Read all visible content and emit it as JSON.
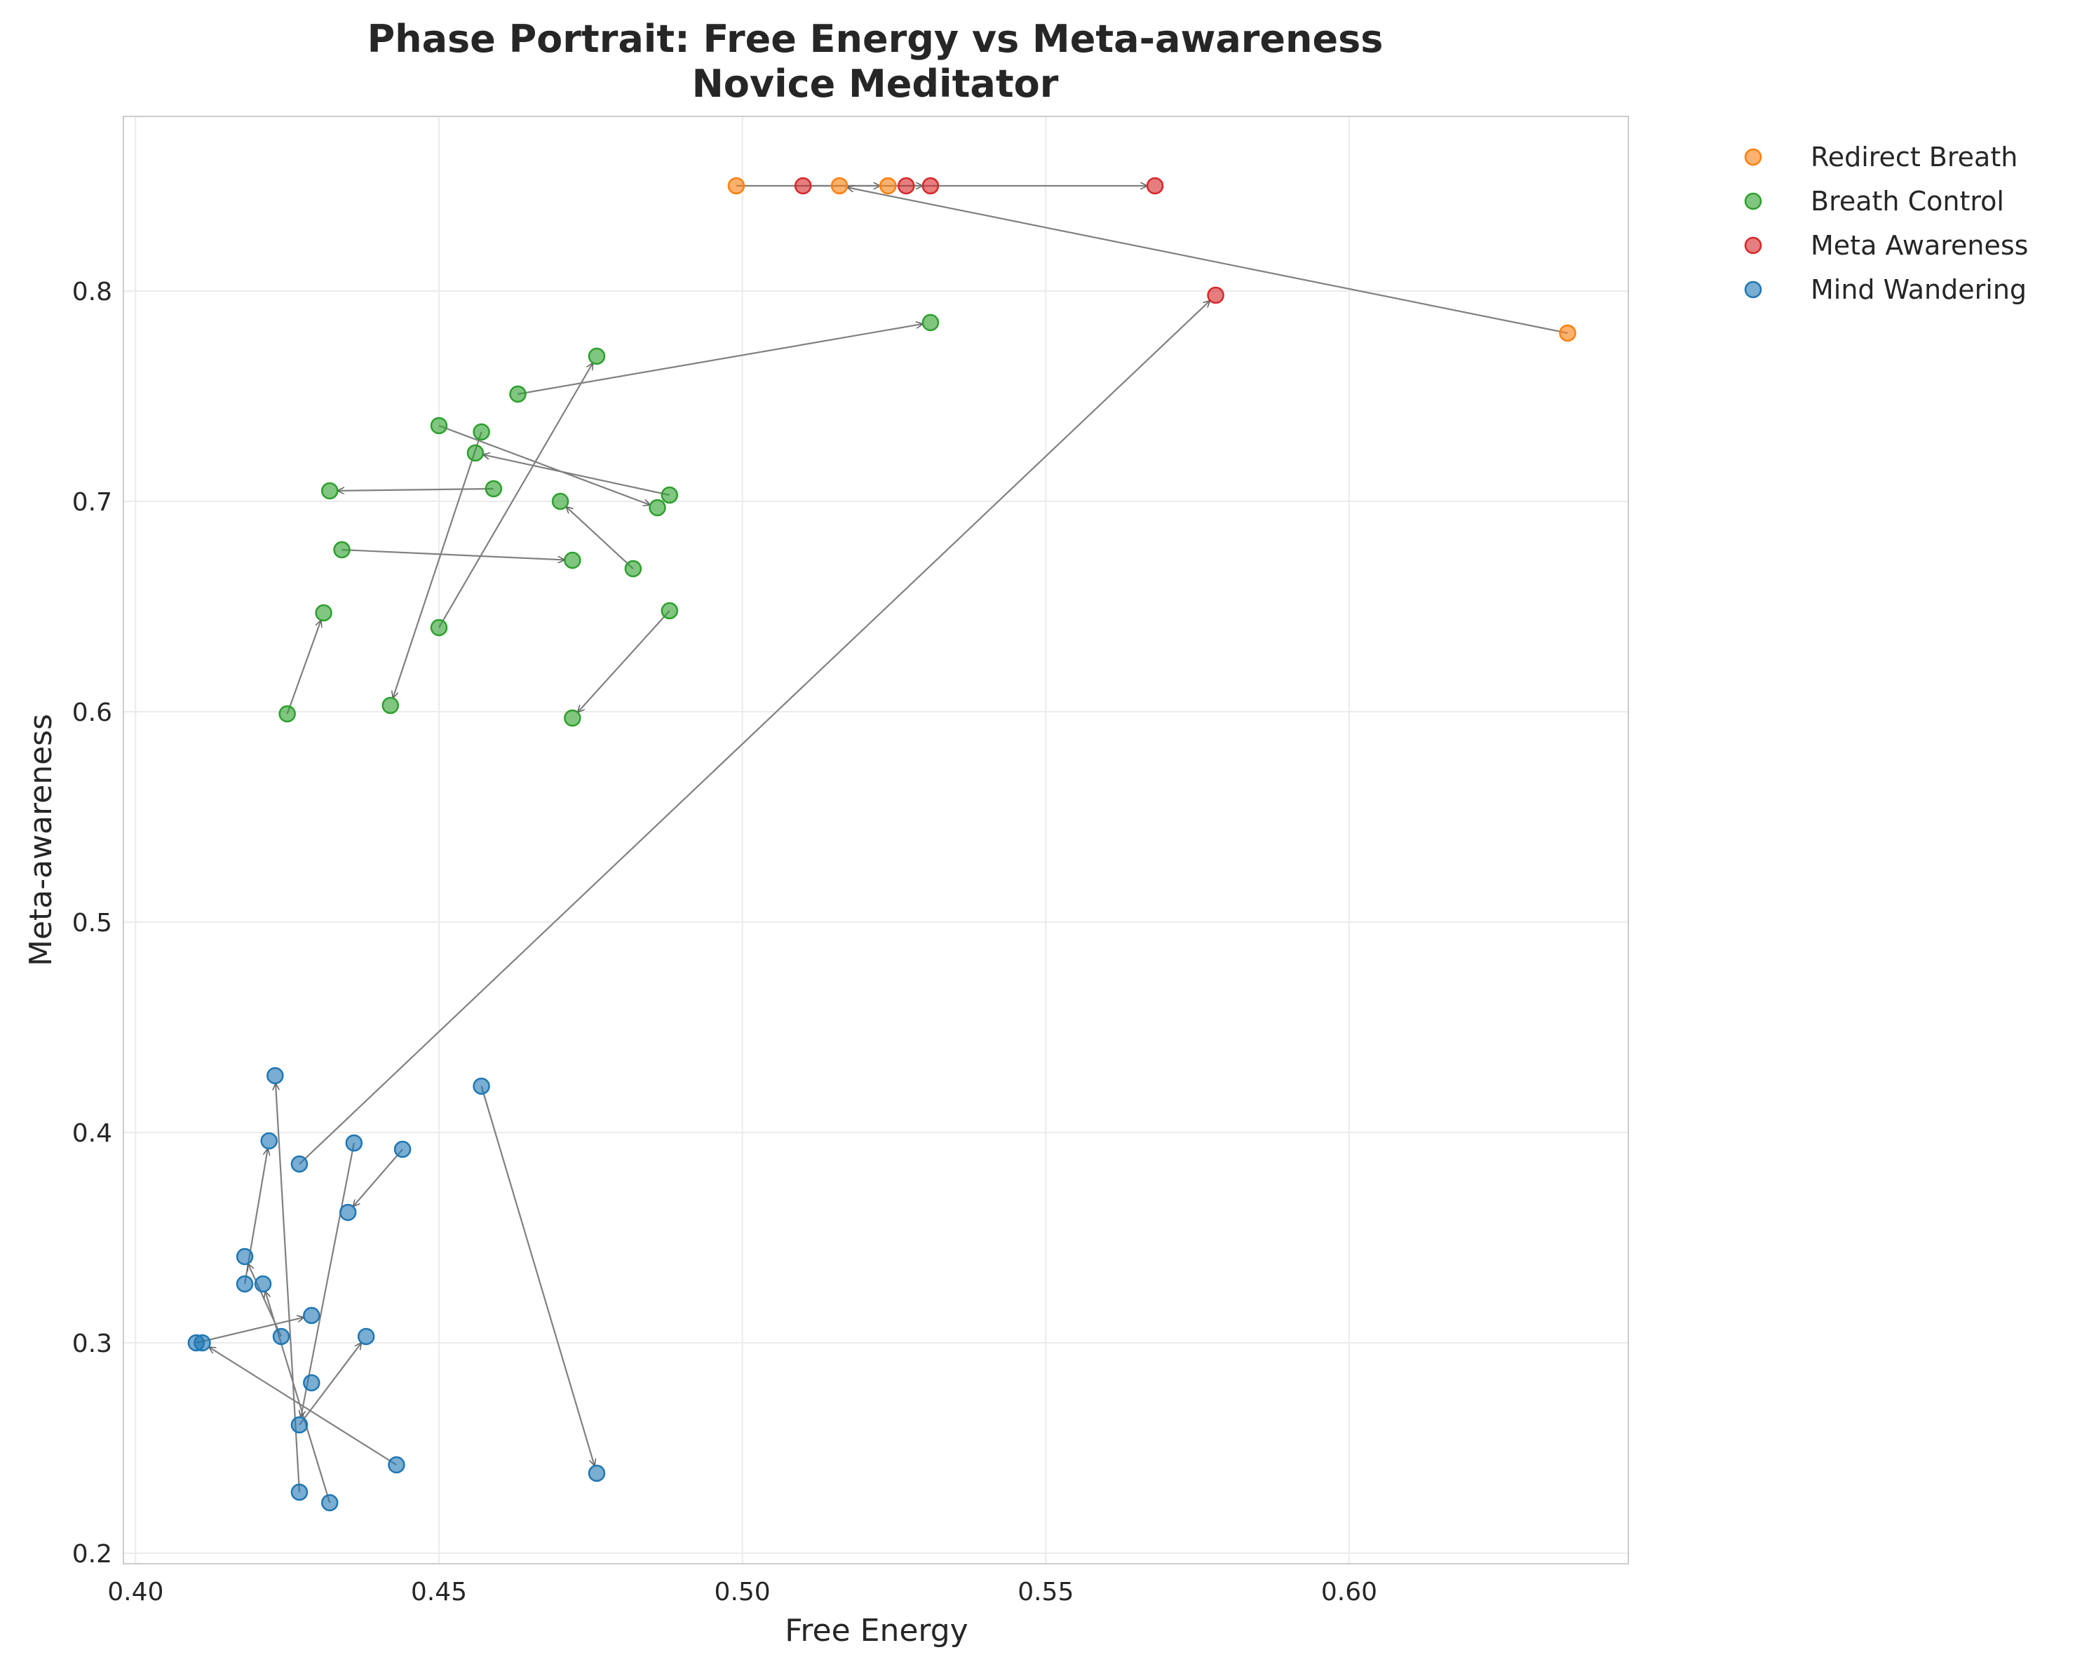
{
  "chart_data": {
    "type": "scatter",
    "title": [
      "Phase Portrait: Free Energy vs Meta-awareness",
      "Novice Meditator"
    ],
    "xlabel": "Free Energy",
    "ylabel": "Meta-awareness",
    "xlim": [
      0.398,
      0.646
    ],
    "ylim": [
      0.195,
      0.883
    ],
    "xticks": [
      0.4,
      0.45,
      0.5,
      0.55,
      0.6
    ],
    "xtick_labels": [
      "0.40",
      "0.45",
      "0.50",
      "0.55",
      "0.60"
    ],
    "yticks": [
      0.2,
      0.3,
      0.4,
      0.5,
      0.6,
      0.7,
      0.8
    ],
    "ytick_labels": [
      "0.2",
      "0.3",
      "0.4",
      "0.5",
      "0.6",
      "0.7",
      "0.8"
    ],
    "grid": true,
    "legend_position": "outside-top-right",
    "series": [
      {
        "name": "Redirect Breath",
        "color": "#ff7f0e",
        "points": [
          [
            0.499,
            0.85
          ],
          [
            0.516,
            0.85
          ],
          [
            0.524,
            0.85
          ],
          [
            0.636,
            0.78
          ]
        ]
      },
      {
        "name": "Breath Control",
        "color": "#2ca02c",
        "points": [
          [
            0.531,
            0.785
          ],
          [
            0.476,
            0.769
          ],
          [
            0.463,
            0.751
          ],
          [
            0.45,
            0.736
          ],
          [
            0.457,
            0.733
          ],
          [
            0.456,
            0.723
          ],
          [
            0.459,
            0.706
          ],
          [
            0.432,
            0.705
          ],
          [
            0.488,
            0.703
          ],
          [
            0.486,
            0.697
          ],
          [
            0.47,
            0.7
          ],
          [
            0.434,
            0.677
          ],
          [
            0.472,
            0.672
          ],
          [
            0.482,
            0.668
          ],
          [
            0.431,
            0.647
          ],
          [
            0.488,
            0.648
          ],
          [
            0.45,
            0.64
          ],
          [
            0.442,
            0.603
          ],
          [
            0.425,
            0.599
          ],
          [
            0.472,
            0.597
          ]
        ]
      },
      {
        "name": "Meta Awareness",
        "color": "#d62728",
        "points": [
          [
            0.51,
            0.85
          ],
          [
            0.527,
            0.85
          ],
          [
            0.531,
            0.85
          ],
          [
            0.568,
            0.85
          ],
          [
            0.578,
            0.798
          ]
        ]
      },
      {
        "name": "Mind Wandering",
        "color": "#1f77b4",
        "points": [
          [
            0.423,
            0.427
          ],
          [
            0.457,
            0.422
          ],
          [
            0.422,
            0.396
          ],
          [
            0.436,
            0.395
          ],
          [
            0.444,
            0.392
          ],
          [
            0.427,
            0.385
          ],
          [
            0.435,
            0.362
          ],
          [
            0.418,
            0.341
          ],
          [
            0.418,
            0.328
          ],
          [
            0.421,
            0.328
          ],
          [
            0.429,
            0.313
          ],
          [
            0.424,
            0.303
          ],
          [
            0.438,
            0.303
          ],
          [
            0.41,
            0.3
          ],
          [
            0.411,
            0.3
          ],
          [
            0.429,
            0.281
          ],
          [
            0.427,
            0.261
          ],
          [
            0.443,
            0.242
          ],
          [
            0.476,
            0.238
          ],
          [
            0.427,
            0.229
          ],
          [
            0.432,
            0.224
          ]
        ]
      }
    ],
    "arrows": [
      [
        [
          0.499,
          0.85
        ],
        [
          0.524,
          0.85
        ]
      ],
      [
        [
          0.51,
          0.85
        ],
        [
          0.531,
          0.85
        ]
      ],
      [
        [
          0.527,
          0.85
        ],
        [
          0.568,
          0.85
        ]
      ],
      [
        [
          0.636,
          0.78
        ],
        [
          0.516,
          0.85
        ]
      ],
      [
        [
          0.427,
          0.385
        ],
        [
          0.578,
          0.798
        ]
      ],
      [
        [
          0.463,
          0.751
        ],
        [
          0.531,
          0.785
        ]
      ],
      [
        [
          0.45,
          0.64
        ],
        [
          0.476,
          0.769
        ]
      ],
      [
        [
          0.45,
          0.736
        ],
        [
          0.486,
          0.697
        ]
      ],
      [
        [
          0.457,
          0.733
        ],
        [
          0.442,
          0.603
        ]
      ],
      [
        [
          0.488,
          0.703
        ],
        [
          0.456,
          0.723
        ]
      ],
      [
        [
          0.459,
          0.706
        ],
        [
          0.432,
          0.705
        ]
      ],
      [
        [
          0.482,
          0.668
        ],
        [
          0.47,
          0.7
        ]
      ],
      [
        [
          0.434,
          0.677
        ],
        [
          0.472,
          0.672
        ]
      ],
      [
        [
          0.425,
          0.599
        ],
        [
          0.431,
          0.647
        ]
      ],
      [
        [
          0.488,
          0.648
        ],
        [
          0.472,
          0.597
        ]
      ],
      [
        [
          0.418,
          0.328
        ],
        [
          0.422,
          0.396
        ]
      ],
      [
        [
          0.427,
          0.229
        ],
        [
          0.423,
          0.427
        ]
      ],
      [
        [
          0.457,
          0.422
        ],
        [
          0.476,
          0.238
        ]
      ],
      [
        [
          0.444,
          0.392
        ],
        [
          0.435,
          0.362
        ]
      ],
      [
        [
          0.424,
          0.303
        ],
        [
          0.418,
          0.341
        ]
      ],
      [
        [
          0.432,
          0.224
        ],
        [
          0.421,
          0.328
        ]
      ],
      [
        [
          0.41,
          0.3
        ],
        [
          0.429,
          0.313
        ]
      ],
      [
        [
          0.443,
          0.242
        ],
        [
          0.411,
          0.3
        ]
      ],
      [
        [
          0.427,
          0.261
        ],
        [
          0.438,
          0.303
        ]
      ],
      [
        [
          0.436,
          0.395
        ],
        [
          0.427,
          0.261
        ]
      ]
    ]
  }
}
